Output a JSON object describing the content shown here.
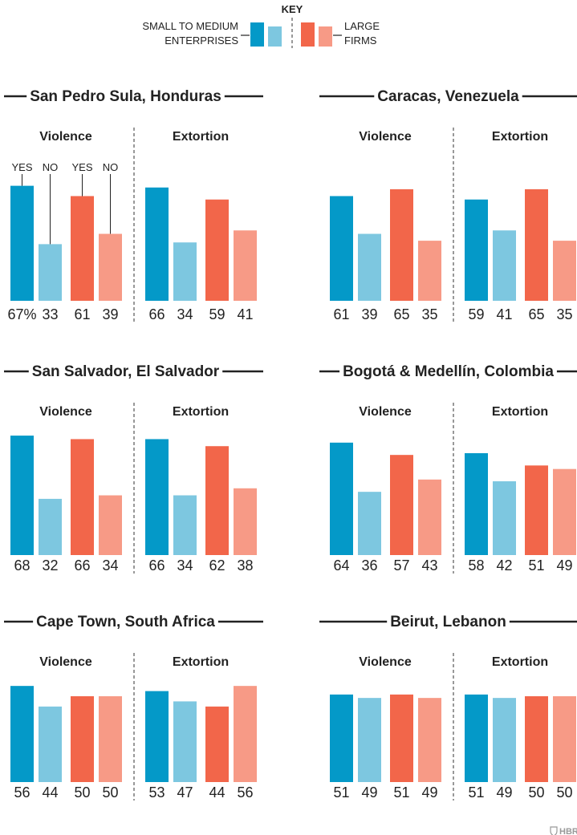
{
  "colors": {
    "sme_yes": "#0499c8",
    "sme_no": "#7dc7e0",
    "large_yes": "#f2664a",
    "large_no": "#f79a86",
    "text": "#222222",
    "divider": "#555555"
  },
  "key": {
    "title": "KEY",
    "sme_line1": "SMALL TO MEDIUM",
    "sme_line2": "ENTERPRISES",
    "large_line1": "LARGE",
    "large_line2": "FIRMS"
  },
  "annotations": {
    "yes": "YES",
    "no": "NO",
    "percent_suffix": "%"
  },
  "logo": "HBR",
  "chart_data": [
    {
      "type": "bar",
      "title": "San Pedro Sula, Honduras",
      "groups": [
        {
          "name": "Violence",
          "categories": [
            "SME yes",
            "SME no",
            "Large yes",
            "Large no"
          ],
          "values": [
            67,
            33,
            61,
            39
          ]
        },
        {
          "name": "Extortion",
          "categories": [
            "SME yes",
            "SME no",
            "Large yes",
            "Large no"
          ],
          "values": [
            66,
            34,
            59,
            41
          ]
        }
      ],
      "ylim": [
        0,
        100
      ]
    },
    {
      "type": "bar",
      "title": "Caracas, Venezuela",
      "groups": [
        {
          "name": "Violence",
          "categories": [
            "SME yes",
            "SME no",
            "Large yes",
            "Large no"
          ],
          "values": [
            61,
            39,
            65,
            35
          ]
        },
        {
          "name": "Extortion",
          "categories": [
            "SME yes",
            "SME no",
            "Large yes",
            "Large no"
          ],
          "values": [
            59,
            41,
            65,
            35
          ]
        }
      ],
      "ylim": [
        0,
        100
      ]
    },
    {
      "type": "bar",
      "title": "San Salvador, El Salvador",
      "groups": [
        {
          "name": "Violence",
          "categories": [
            "SME yes",
            "SME no",
            "Large yes",
            "Large no"
          ],
          "values": [
            68,
            32,
            66,
            34
          ]
        },
        {
          "name": "Extortion",
          "categories": [
            "SME yes",
            "SME no",
            "Large yes",
            "Large no"
          ],
          "values": [
            66,
            34,
            62,
            38
          ]
        }
      ],
      "ylim": [
        0,
        100
      ]
    },
    {
      "type": "bar",
      "title": "Bogotá & Medellín, Colombia",
      "groups": [
        {
          "name": "Violence",
          "categories": [
            "SME yes",
            "SME no",
            "Large yes",
            "Large no"
          ],
          "values": [
            64,
            36,
            57,
            43
          ]
        },
        {
          "name": "Extortion",
          "categories": [
            "SME yes",
            "SME no",
            "Large yes",
            "Large no"
          ],
          "values": [
            58,
            42,
            51,
            49
          ]
        }
      ],
      "ylim": [
        0,
        100
      ]
    },
    {
      "type": "bar",
      "title": "Cape Town, South Africa",
      "groups": [
        {
          "name": "Violence",
          "categories": [
            "SME yes",
            "SME no",
            "Large yes",
            "Large no"
          ],
          "values": [
            56,
            44,
            50,
            50
          ]
        },
        {
          "name": "Extortion",
          "categories": [
            "SME yes",
            "SME no",
            "Large yes",
            "Large no"
          ],
          "values": [
            53,
            47,
            44,
            56
          ]
        }
      ],
      "ylim": [
        0,
        100
      ]
    },
    {
      "type": "bar",
      "title": "Beirut, Lebanon",
      "groups": [
        {
          "name": "Violence",
          "categories": [
            "SME yes",
            "SME no",
            "Large yes",
            "Large no"
          ],
          "values": [
            51,
            49,
            51,
            49
          ]
        },
        {
          "name": "Extortion",
          "categories": [
            "SME yes",
            "SME no",
            "Large yes",
            "Large no"
          ],
          "values": [
            51,
            49,
            50,
            50
          ]
        }
      ],
      "ylim": [
        0,
        100
      ]
    }
  ]
}
